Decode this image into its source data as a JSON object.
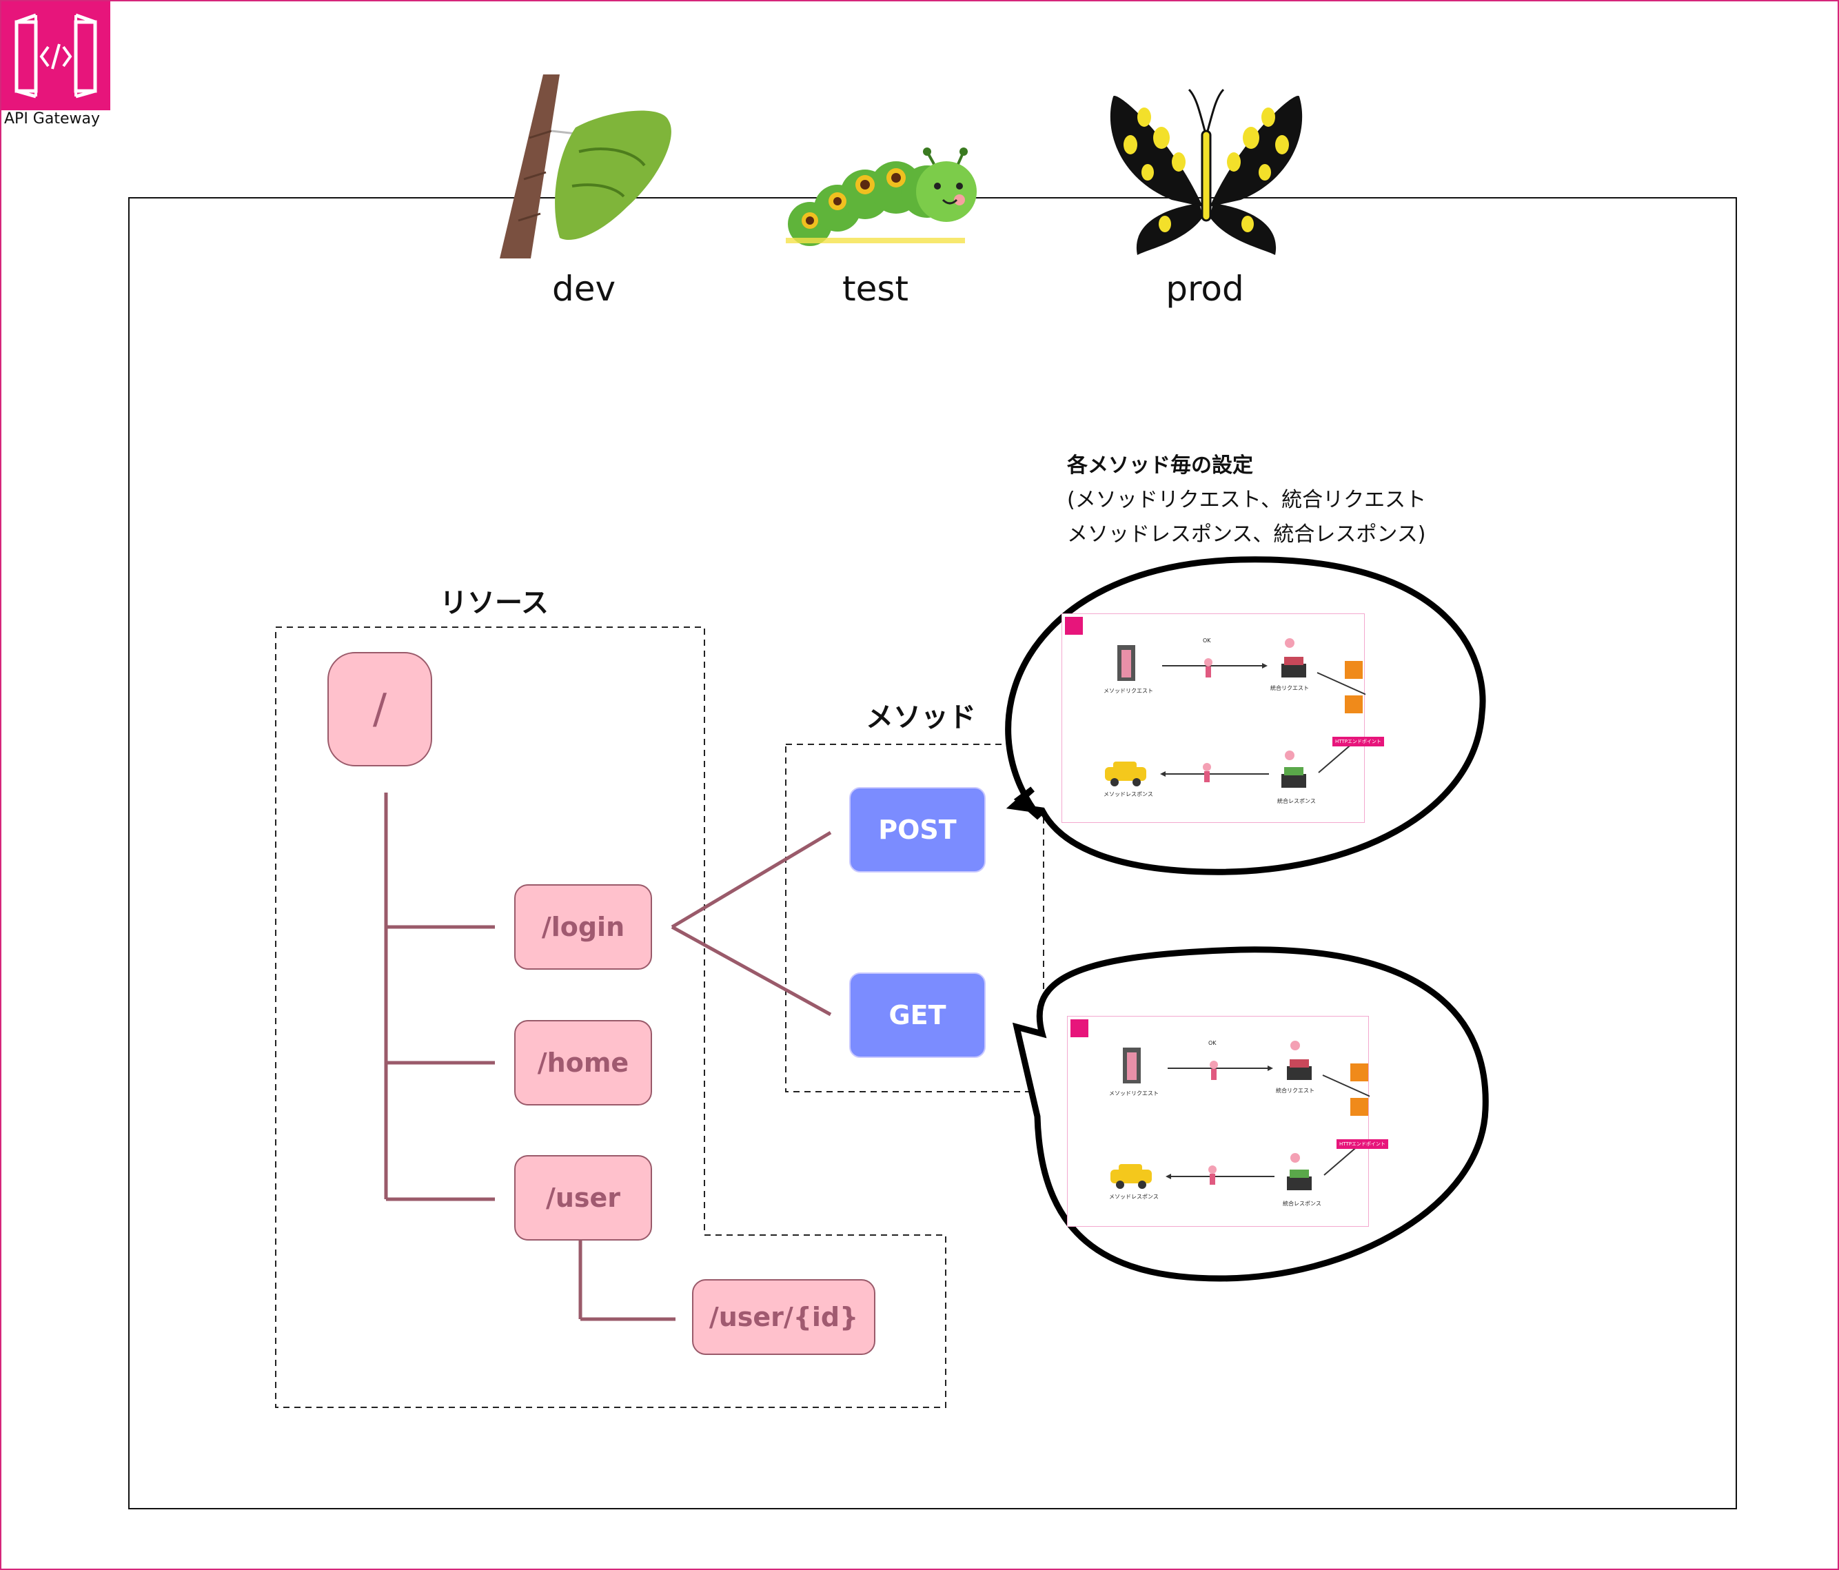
{
  "aws": {
    "label": "API Gateway",
    "color": "#e7157b"
  },
  "stages": [
    "dev",
    "test",
    "prod"
  ],
  "headings": {
    "resources": "リソース",
    "methods": "メソッド",
    "method_settings_title": "各メソッド毎の設定",
    "method_settings_line1": "(メソッドリクエスト、統合リクエスト",
    "method_settings_line2": "メソッドレスポンス、統合レスポンス)"
  },
  "resources": {
    "root": "/",
    "login": "/login",
    "home": "/home",
    "user": "/user",
    "user_id": "/user/{id}"
  },
  "methods": {
    "post": "POST",
    "get": "GET"
  },
  "flow": {
    "method_request": "メソッドリクエスト",
    "integration_request": "統合リクエスト",
    "method_response": "メソッドレスポンス",
    "integration_response": "統合レスポンス",
    "ok": "OK",
    "endpoint": "HTTPエンドポイント",
    "lambda": "Lambda",
    "ecs": "ECS"
  },
  "colors": {
    "resource_fill": "#ffc1cc",
    "resource_text": "#a05a70",
    "method_fill": "#7b8cff",
    "connector": "#9a5a6a"
  }
}
